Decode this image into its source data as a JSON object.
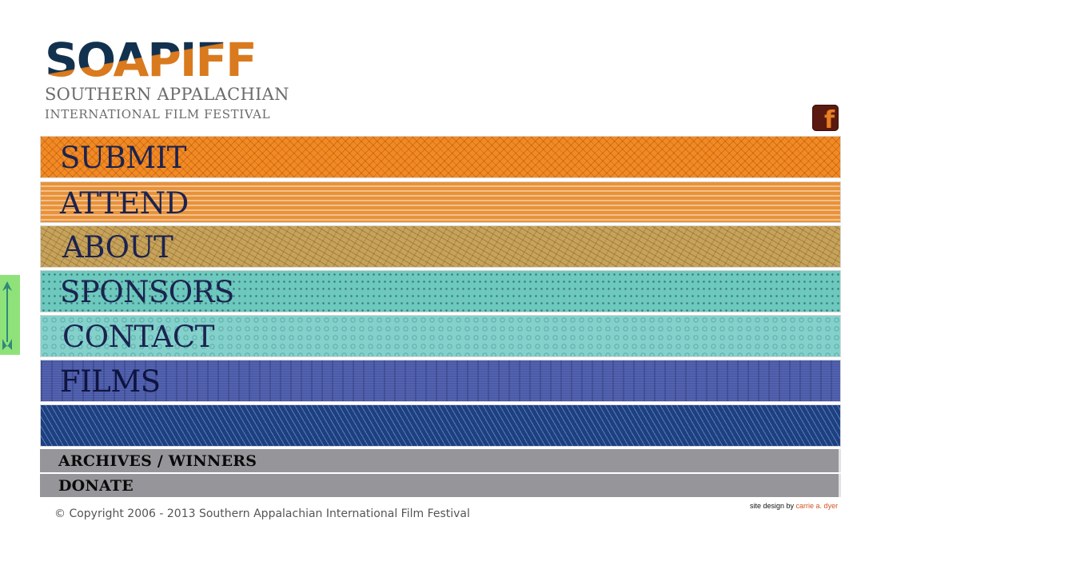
{
  "logo": {
    "word": "SOAPIFF",
    "line1": "SOUTHERN APPALACHIAN",
    "line2": "INTERNATIONAL FILM FESTIVAL"
  },
  "social": {
    "facebook_icon": "facebook-icon",
    "facebook_glyph": "f"
  },
  "side_tab": {
    "icon": "up-arrow-icon"
  },
  "nav": {
    "submit": "SUBMIT",
    "attend": "ATTEND",
    "about": "ABOUT",
    "sponsors": "SPONSORS",
    "contact": "CONTACT",
    "films": "FILMS",
    "archives": "ARCHIVES / WINNERS",
    "donate": "DONATE"
  },
  "footer": {
    "copyright": "© Copyright 2006 - 2013 Southern Appalachian International Film Festival",
    "credit_prefix": "site design by ",
    "credit_link": "carrie a. dyer"
  },
  "colors": {
    "navy": "#12314f",
    "orange": "#d97a1e",
    "submit": "#f28a24",
    "attend": "#e8923a",
    "about": "#c7a35a",
    "sponsors": "#6dc8bd",
    "contact": "#84d1cb",
    "films": "#4a5aa8",
    "blank": "#1f3f7f",
    "gray_bar": "#96969a"
  }
}
